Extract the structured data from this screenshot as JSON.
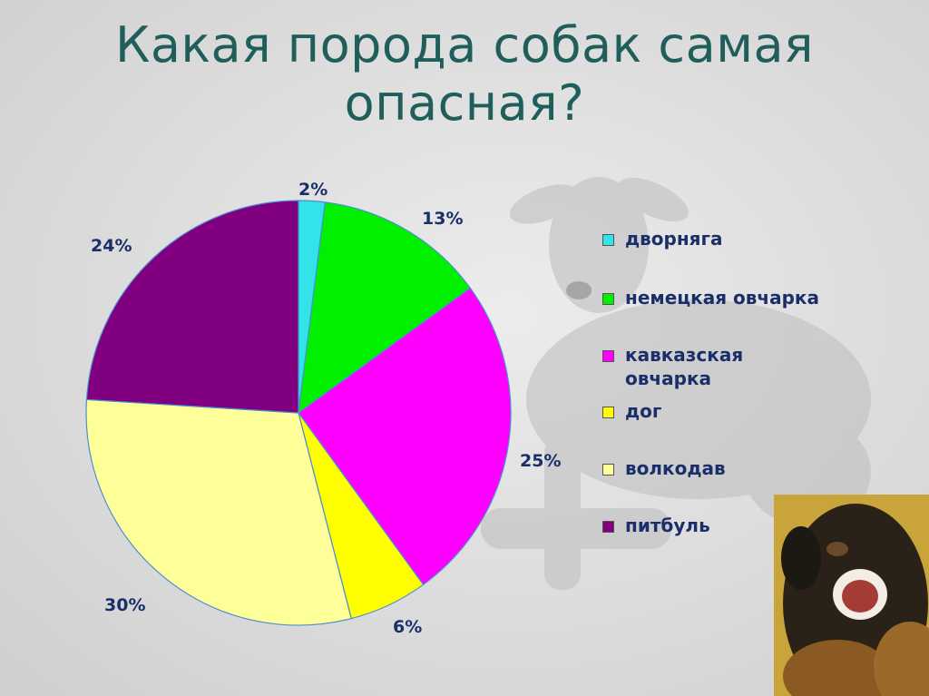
{
  "title": "Какая порода собак самая опасная?",
  "chart_data": {
    "type": "pie",
    "title": "Какая порода собак самая опасная?",
    "categories": [
      "дворняга",
      "немецкая овчарка",
      "кавказская овчарка",
      "дог",
      "волкодав",
      "питбуль"
    ],
    "values": [
      2,
      13,
      25,
      6,
      30,
      24
    ],
    "labels": [
      "2%",
      "13%",
      "25%",
      "6%",
      "30%",
      "24%"
    ],
    "colors": [
      "#33e3ea",
      "#00f000",
      "#ff00ff",
      "#ffff00",
      "#ffff99",
      "#800080"
    ],
    "legend_position": "right"
  },
  "legend": {
    "items": [
      {
        "label": "дворняга",
        "color": "#33e3ea"
      },
      {
        "label": "немецкая овчарка",
        "color": "#00f000"
      },
      {
        "label": "кавказская овчарка",
        "color": "#ff00ff"
      },
      {
        "label": "дог",
        "color": "#ffff00"
      },
      {
        "label": "волкодав",
        "color": "#ffff99"
      },
      {
        "label": "питбуль",
        "color": "#800080"
      }
    ]
  },
  "images": {
    "background": "dog-photo",
    "corner": "angry-dog-photo"
  }
}
